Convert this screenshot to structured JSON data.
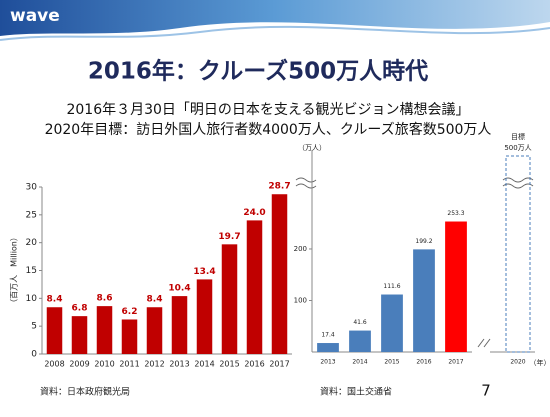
{
  "header": {
    "logo": "wave",
    "title": "2016年：クルーズ500万人時代",
    "subtitle": [
      "2016年３月30日「明日の日本を支える観光ビジョン構想会議」",
      "2020年目標：訪日外国人旅行者数4000万人、クルーズ旅客数500万人"
    ]
  },
  "page_number": "7",
  "chart_data": [
    {
      "type": "bar",
      "y_label": "（百万人　Million）",
      "source": "資料：日本政府観光局",
      "categories": [
        "2008",
        "2009",
        "2010",
        "2011",
        "2012",
        "2013",
        "2014",
        "2015",
        "2016",
        "2017"
      ],
      "values": [
        8.4,
        6.8,
        8.6,
        6.2,
        8.4,
        10.4,
        13.4,
        19.7,
        24,
        28.7
      ],
      "value_labels": [
        "8.4",
        "6.8",
        "8.6",
        "6.2",
        "8.4",
        "10.4",
        "13.4",
        "19.7",
        "24.0",
        "28.7"
      ],
      "color": "#c00000",
      "ylim": [
        0,
        30
      ],
      "yticks": [
        0,
        5,
        10,
        15,
        20,
        25,
        30
      ]
    },
    {
      "type": "bar",
      "y_label": "（万人）",
      "x_label": "（年）",
      "source": "資料：国土交通省",
      "categories": [
        "2013",
        "2014",
        "2015",
        "2016",
        "2017",
        "2020"
      ],
      "values": [
        17.4,
        41.6,
        111.6,
        199.2,
        253.3,
        null
      ],
      "colors": [
        "#4a7ebb",
        "#4a7ebb",
        "#4a7ebb",
        "#4a7ebb",
        "#ff0000",
        null
      ],
      "target_label": [
        "目標",
        "500万人"
      ],
      "ylim": [
        0,
        330
      ],
      "yticks": [
        100,
        200
      ]
    }
  ]
}
